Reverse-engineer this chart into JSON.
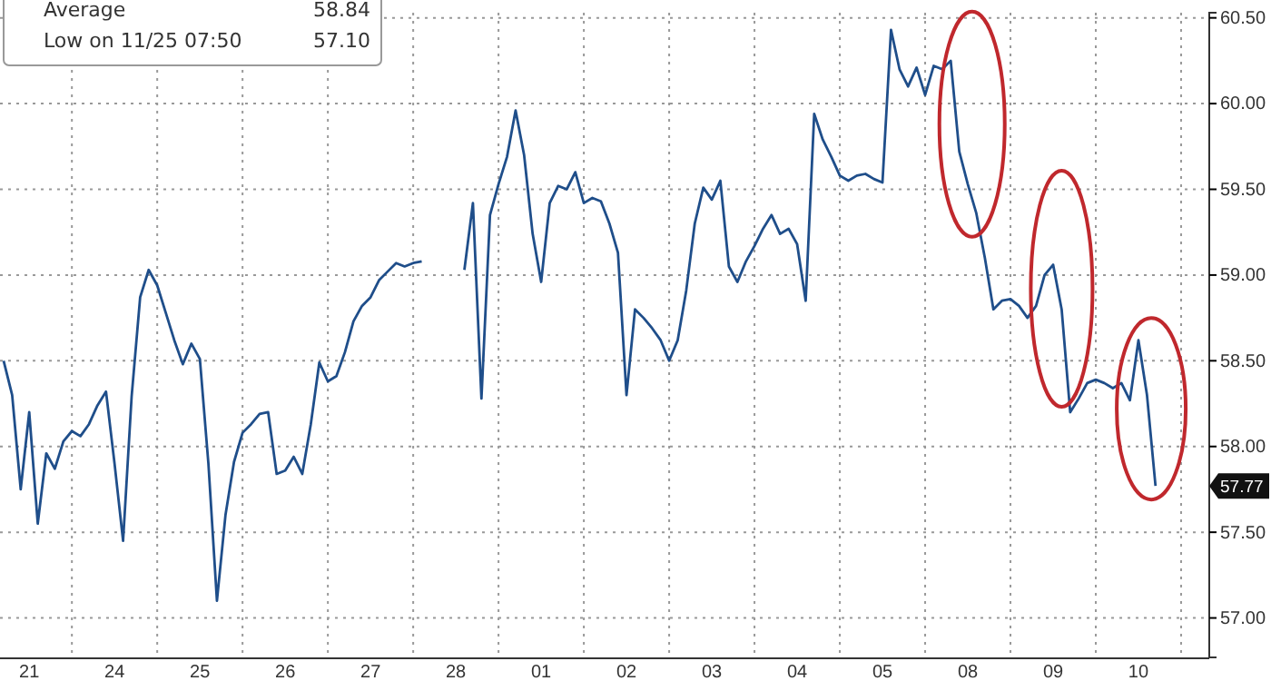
{
  "chart_data": {
    "type": "line",
    "grid": true,
    "categories": [
      null,
      null,
      null,
      "21",
      null,
      null,
      null,
      null,
      null,
      null,
      null,
      null,
      null,
      "24",
      null,
      null,
      null,
      null,
      null,
      null,
      null,
      null,
      null,
      "25",
      null,
      null,
      null,
      null,
      null,
      null,
      null,
      null,
      null,
      "26",
      null,
      null,
      null,
      null,
      null,
      null,
      null,
      null,
      null,
      "27",
      null,
      null,
      null,
      null,
      null,
      null,
      null,
      null,
      null,
      "28",
      null,
      null,
      null,
      null,
      null,
      null,
      null,
      null,
      null,
      "01",
      null,
      null,
      null,
      null,
      null,
      null,
      null,
      null,
      null,
      "02",
      null,
      null,
      null,
      null,
      null,
      null,
      null,
      null,
      null,
      "03",
      null,
      null,
      null,
      null,
      null,
      null,
      null,
      null,
      null,
      "04",
      null,
      null,
      null,
      null,
      null,
      null,
      null,
      null,
      null,
      "05",
      null,
      null,
      null,
      null,
      null,
      null,
      null,
      null,
      null,
      "08",
      null,
      null,
      null,
      null,
      null,
      null,
      null,
      null,
      null,
      "09",
      null,
      null,
      null,
      null,
      null,
      null,
      null,
      null,
      null,
      "10",
      null,
      null
    ],
    "ylim": [
      56.77,
      60.53
    ],
    "yticks": [
      {
        "value": 57,
        "label": "57.00"
      },
      {
        "value": 57.5,
        "label": "57.50"
      },
      {
        "value": 58,
        "label": "58.00"
      },
      {
        "value": 58.5,
        "label": "58.50"
      },
      {
        "value": 59,
        "label": "59.00"
      },
      {
        "value": 59.5,
        "label": "59.50"
      },
      {
        "value": 60,
        "label": "60.00"
      },
      {
        "value": 60.5,
        "label": "60.50"
      }
    ],
    "annotations": [
      "Average",
      "58.84",
      "Low on 11/25 07:50",
      "57.10",
      "57.77"
    ],
    "series": [
      {
        "color": "#1f4e8a",
        "values": [
          58.5,
          58.3,
          57.75,
          58.2,
          57.55,
          57.96,
          57.87,
          58.03,
          58.09,
          58.06,
          58.13,
          58.24,
          58.32,
          57.9,
          57.45,
          58.29,
          58.87,
          59.03,
          58.94,
          58.78,
          58.62,
          58.48,
          58.6,
          58.51,
          57.9,
          57.1,
          57.6,
          57.91,
          58.08,
          58.13,
          58.19,
          58.2,
          57.84,
          57.86,
          57.94,
          57.84,
          58.13,
          58.49,
          58.38,
          58.41,
          58.55,
          58.73,
          58.82,
          58.87,
          58.97,
          59.02,
          59.07,
          59.05,
          59.07,
          59.08,
          null,
          null,
          null,
          null,
          59.03,
          59.42,
          58.28,
          59.35,
          59.53,
          59.69,
          59.96,
          59.7,
          59.24,
          58.96,
          59.42,
          59.52,
          59.5,
          59.6,
          59.42,
          59.45,
          59.43,
          59.3,
          59.13,
          58.3,
          58.8,
          58.75,
          58.69,
          58.62,
          58.5,
          58.62,
          58.91,
          59.3,
          59.51,
          59.44,
          59.55,
          59.05,
          58.96,
          59.08,
          59.17,
          59.27,
          59.35,
          59.24,
          59.27,
          59.18,
          58.85,
          59.94,
          59.79,
          59.69,
          59.58,
          59.55,
          59.58,
          59.59,
          59.56,
          59.54,
          60.43,
          60.2,
          60.1,
          60.21,
          60.05,
          60.22,
          60.2,
          60.25,
          59.72,
          59.53,
          59.36,
          59.1,
          58.8,
          58.85,
          58.86,
          58.82,
          58.75,
          58.82,
          59.0,
          59.06,
          58.8,
          58.2,
          58.28,
          58.37,
          58.39,
          58.37,
          58.34,
          58.37,
          58.27,
          58.62,
          58.3,
          57.77
        ]
      }
    ]
  }
}
